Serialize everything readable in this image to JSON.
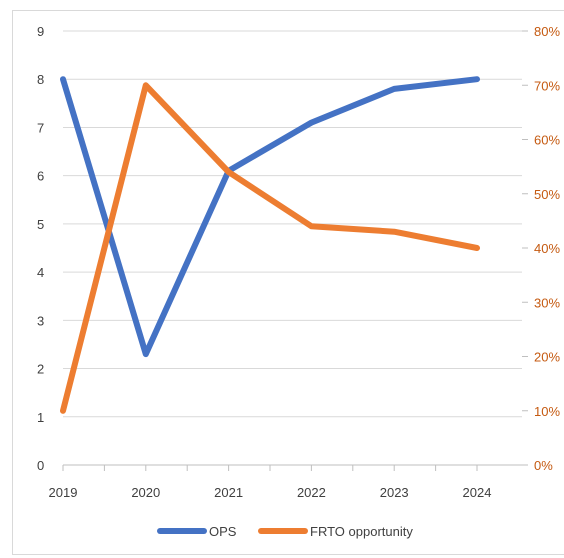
{
  "chart_data": {
    "type": "line",
    "categories": [
      "2019",
      "2020",
      "2021",
      "2022",
      "2023",
      "2024"
    ],
    "series": [
      {
        "name": "OPS",
        "axis": "left",
        "color": "#4472c4",
        "values": [
          8.0,
          2.3,
          6.1,
          7.1,
          7.8,
          8.0
        ]
      },
      {
        "name": "FRTO opportunity",
        "axis": "right",
        "color": "#ed7d31",
        "values": [
          0.1,
          0.7,
          0.54,
          0.44,
          0.43,
          0.4
        ]
      }
    ],
    "y_left": {
      "min": 0,
      "max": 9,
      "ticks": [
        "0",
        "1",
        "2",
        "3",
        "4",
        "5",
        "6",
        "7",
        "8",
        "9"
      ]
    },
    "y_right": {
      "min": 0,
      "max": 0.8,
      "ticks": [
        "0%",
        "10%",
        "20%",
        "30%",
        "40%",
        "50%",
        "60%",
        "70%",
        "80%"
      ],
      "color": "#c55a11"
    },
    "grid": true,
    "legend": "bottom"
  }
}
